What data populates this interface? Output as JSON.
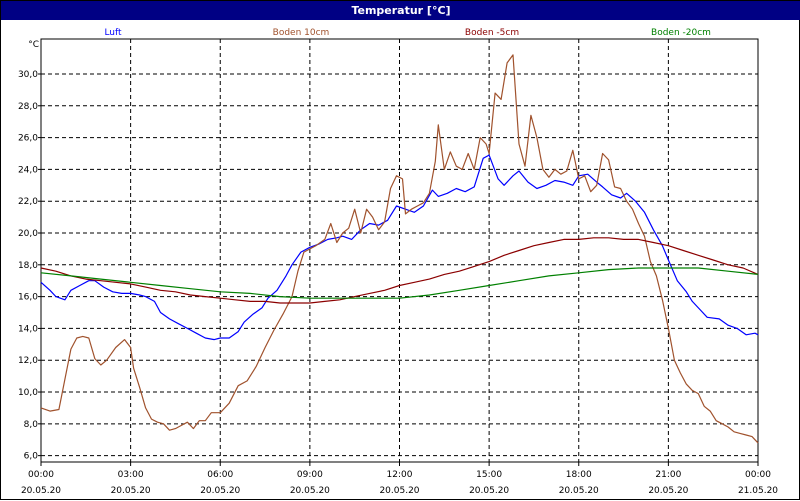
{
  "window": {
    "title": "Temperatur [°C]"
  },
  "chart_data": {
    "type": "line",
    "title": "Temperatur [°C]",
    "ylabel": "°C",
    "xlabel": "",
    "ylim": [
      5.6,
      32.2
    ],
    "y_ticks": [
      6.0,
      8.0,
      10.0,
      12.0,
      14.0,
      16.0,
      18.0,
      20.0,
      22.0,
      24.0,
      26.0,
      28.0,
      30.0
    ],
    "y_tick_labels": [
      "6,0",
      "8,0",
      "10,0",
      "12,0",
      "14,0",
      "16,0",
      "18,0",
      "20,0",
      "22,0",
      "24,0",
      "26,0",
      "28,0",
      "30,0"
    ],
    "x_unit": "hours since 20.05.20 00:00",
    "xlim": [
      0,
      24
    ],
    "x_ticks": [
      {
        "time": "00:00",
        "date": "20.05.20"
      },
      {
        "time": "03:00",
        "date": "20.05.20"
      },
      {
        "time": "06:00",
        "date": "20.05.20"
      },
      {
        "time": "09:00",
        "date": "20.05.20"
      },
      {
        "time": "12:00",
        "date": "20.05.20"
      },
      {
        "time": "15:00",
        "date": "20.05.20"
      },
      {
        "time": "18:00",
        "date": "20.05.20"
      },
      {
        "time": "21:00",
        "date": "20.05.20"
      },
      {
        "time": "00:00",
        "date": "21.05.20"
      }
    ],
    "grid": true,
    "legend_position": "top",
    "series": [
      {
        "name": "Luft",
        "color": "#0000ff",
        "points": [
          [
            0.0,
            16.9
          ],
          [
            0.3,
            16.4
          ],
          [
            0.5,
            16.0
          ],
          [
            0.8,
            15.8
          ],
          [
            1.0,
            16.4
          ],
          [
            1.3,
            16.7
          ],
          [
            1.6,
            17.0
          ],
          [
            1.8,
            17.0
          ],
          [
            2.1,
            16.6
          ],
          [
            2.4,
            16.3
          ],
          [
            2.7,
            16.2
          ],
          [
            3.0,
            16.2
          ],
          [
            3.3,
            16.1
          ],
          [
            3.5,
            16.0
          ],
          [
            3.8,
            15.7
          ],
          [
            4.0,
            15.0
          ],
          [
            4.3,
            14.6
          ],
          [
            4.6,
            14.3
          ],
          [
            4.9,
            14.0
          ],
          [
            5.2,
            13.7
          ],
          [
            5.5,
            13.4
          ],
          [
            5.8,
            13.3
          ],
          [
            6.0,
            13.4
          ],
          [
            6.3,
            13.4
          ],
          [
            6.6,
            13.8
          ],
          [
            6.8,
            14.4
          ],
          [
            7.1,
            14.9
          ],
          [
            7.4,
            15.3
          ],
          [
            7.6,
            15.9
          ],
          [
            7.9,
            16.4
          ],
          [
            8.2,
            17.3
          ],
          [
            8.4,
            18.0
          ],
          [
            8.7,
            18.8
          ],
          [
            9.0,
            19.1
          ],
          [
            9.3,
            19.3
          ],
          [
            9.6,
            19.6
          ],
          [
            9.9,
            19.7
          ],
          [
            10.1,
            19.8
          ],
          [
            10.4,
            19.6
          ],
          [
            10.7,
            20.2
          ],
          [
            11.0,
            20.6
          ],
          [
            11.3,
            20.5
          ],
          [
            11.6,
            20.8
          ],
          [
            11.9,
            21.7
          ],
          [
            12.2,
            21.5
          ],
          [
            12.5,
            21.3
          ],
          [
            12.8,
            21.7
          ],
          [
            13.1,
            22.7
          ],
          [
            13.3,
            22.3
          ],
          [
            13.6,
            22.5
          ],
          [
            13.9,
            22.8
          ],
          [
            14.2,
            22.6
          ],
          [
            14.5,
            22.9
          ],
          [
            14.8,
            24.7
          ],
          [
            15.0,
            24.9
          ],
          [
            15.3,
            23.4
          ],
          [
            15.5,
            23.0
          ],
          [
            15.8,
            23.6
          ],
          [
            16.0,
            23.9
          ],
          [
            16.3,
            23.2
          ],
          [
            16.6,
            22.8
          ],
          [
            16.9,
            23.0
          ],
          [
            17.2,
            23.3
          ],
          [
            17.5,
            23.2
          ],
          [
            17.8,
            23.0
          ],
          [
            18.0,
            23.6
          ],
          [
            18.3,
            23.7
          ],
          [
            18.6,
            23.2
          ],
          [
            18.8,
            22.9
          ],
          [
            19.1,
            22.4
          ],
          [
            19.4,
            22.2
          ],
          [
            19.6,
            22.5
          ],
          [
            19.9,
            22.0
          ],
          [
            20.2,
            21.3
          ],
          [
            20.5,
            20.2
          ],
          [
            20.8,
            19.2
          ],
          [
            21.0,
            18.3
          ],
          [
            21.3,
            17.0
          ],
          [
            21.6,
            16.3
          ],
          [
            21.8,
            15.7
          ],
          [
            22.1,
            15.1
          ],
          [
            22.3,
            14.7
          ],
          [
            22.7,
            14.6
          ],
          [
            23.0,
            14.2
          ],
          [
            23.3,
            14.0
          ],
          [
            23.6,
            13.6
          ],
          [
            23.9,
            13.7
          ],
          [
            24.0,
            13.6
          ]
        ]
      },
      {
        "name": "Boden 10cm",
        "color": "#a0522d",
        "points": [
          [
            0.0,
            9.0
          ],
          [
            0.3,
            8.8
          ],
          [
            0.6,
            8.9
          ],
          [
            0.8,
            10.8
          ],
          [
            1.0,
            12.7
          ],
          [
            1.2,
            13.4
          ],
          [
            1.4,
            13.5
          ],
          [
            1.6,
            13.4
          ],
          [
            1.8,
            12.1
          ],
          [
            2.0,
            11.7
          ],
          [
            2.2,
            12.0
          ],
          [
            2.5,
            12.8
          ],
          [
            2.8,
            13.3
          ],
          [
            3.0,
            12.8
          ],
          [
            3.1,
            11.5
          ],
          [
            3.3,
            10.3
          ],
          [
            3.5,
            9.0
          ],
          [
            3.7,
            8.3
          ],
          [
            3.9,
            8.1
          ],
          [
            4.1,
            8.0
          ],
          [
            4.3,
            7.6
          ],
          [
            4.5,
            7.7
          ],
          [
            4.7,
            7.9
          ],
          [
            4.9,
            8.1
          ],
          [
            5.1,
            7.7
          ],
          [
            5.3,
            8.2
          ],
          [
            5.5,
            8.2
          ],
          [
            5.7,
            8.7
          ],
          [
            6.0,
            8.7
          ],
          [
            6.3,
            9.3
          ],
          [
            6.6,
            10.4
          ],
          [
            6.9,
            10.7
          ],
          [
            7.2,
            11.6
          ],
          [
            7.5,
            12.8
          ],
          [
            7.8,
            13.9
          ],
          [
            8.1,
            14.9
          ],
          [
            8.4,
            16.0
          ],
          [
            8.6,
            17.6
          ],
          [
            8.8,
            18.8
          ],
          [
            9.0,
            19.0
          ],
          [
            9.2,
            19.2
          ],
          [
            9.5,
            19.6
          ],
          [
            9.7,
            20.6
          ],
          [
            9.9,
            19.4
          ],
          [
            10.1,
            20.0
          ],
          [
            10.3,
            20.3
          ],
          [
            10.5,
            21.5
          ],
          [
            10.7,
            20.0
          ],
          [
            10.9,
            21.5
          ],
          [
            11.1,
            21.0
          ],
          [
            11.3,
            20.2
          ],
          [
            11.5,
            20.7
          ],
          [
            11.7,
            22.8
          ],
          [
            11.9,
            23.6
          ],
          [
            12.1,
            23.4
          ],
          [
            12.2,
            21.2
          ],
          [
            12.4,
            21.5
          ],
          [
            12.6,
            21.7
          ],
          [
            12.8,
            21.9
          ],
          [
            13.0,
            22.5
          ],
          [
            13.2,
            24.5
          ],
          [
            13.3,
            26.8
          ],
          [
            13.5,
            24.0
          ],
          [
            13.7,
            25.1
          ],
          [
            13.9,
            24.2
          ],
          [
            14.1,
            24.0
          ],
          [
            14.3,
            25.0
          ],
          [
            14.5,
            24.0
          ],
          [
            14.7,
            26.0
          ],
          [
            14.9,
            25.6
          ],
          [
            15.0,
            25.0
          ],
          [
            15.2,
            28.8
          ],
          [
            15.4,
            28.4
          ],
          [
            15.6,
            30.7
          ],
          [
            15.8,
            31.2
          ],
          [
            16.0,
            25.6
          ],
          [
            16.2,
            24.2
          ],
          [
            16.4,
            27.4
          ],
          [
            16.6,
            26.0
          ],
          [
            16.8,
            24.0
          ],
          [
            17.0,
            23.5
          ],
          [
            17.2,
            24.0
          ],
          [
            17.4,
            23.7
          ],
          [
            17.6,
            23.9
          ],
          [
            17.8,
            25.2
          ],
          [
            18.0,
            23.4
          ],
          [
            18.2,
            23.6
          ],
          [
            18.4,
            22.6
          ],
          [
            18.6,
            23.0
          ],
          [
            18.8,
            25.0
          ],
          [
            19.0,
            24.6
          ],
          [
            19.2,
            22.9
          ],
          [
            19.4,
            22.8
          ],
          [
            19.6,
            22.0
          ],
          [
            19.8,
            21.5
          ],
          [
            20.0,
            20.6
          ],
          [
            20.2,
            19.8
          ],
          [
            20.4,
            18.2
          ],
          [
            20.6,
            17.3
          ],
          [
            20.8,
            15.8
          ],
          [
            21.0,
            14.0
          ],
          [
            21.2,
            12.0
          ],
          [
            21.4,
            11.2
          ],
          [
            21.6,
            10.5
          ],
          [
            21.8,
            10.1
          ],
          [
            22.0,
            9.9
          ],
          [
            22.2,
            9.1
          ],
          [
            22.4,
            8.8
          ],
          [
            22.6,
            8.2
          ],
          [
            22.8,
            8.0
          ],
          [
            23.0,
            7.8
          ],
          [
            23.2,
            7.5
          ],
          [
            23.4,
            7.4
          ],
          [
            23.6,
            7.3
          ],
          [
            23.8,
            7.2
          ],
          [
            24.0,
            6.8
          ]
        ]
      },
      {
        "name": "Boden -5cm",
        "color": "#8b0000",
        "points": [
          [
            0.0,
            17.8
          ],
          [
            0.5,
            17.6
          ],
          [
            1.0,
            17.3
          ],
          [
            1.5,
            17.1
          ],
          [
            2.0,
            17.0
          ],
          [
            2.5,
            16.9
          ],
          [
            3.0,
            16.8
          ],
          [
            3.5,
            16.6
          ],
          [
            4.0,
            16.4
          ],
          [
            4.5,
            16.3
          ],
          [
            5.0,
            16.1
          ],
          [
            5.5,
            16.0
          ],
          [
            6.0,
            15.9
          ],
          [
            6.5,
            15.8
          ],
          [
            7.0,
            15.7
          ],
          [
            7.5,
            15.7
          ],
          [
            8.0,
            15.6
          ],
          [
            8.5,
            15.6
          ],
          [
            9.0,
            15.6
          ],
          [
            9.5,
            15.7
          ],
          [
            10.0,
            15.8
          ],
          [
            10.5,
            16.0
          ],
          [
            11.0,
            16.2
          ],
          [
            11.5,
            16.4
          ],
          [
            12.0,
            16.7
          ],
          [
            12.5,
            16.9
          ],
          [
            13.0,
            17.1
          ],
          [
            13.5,
            17.4
          ],
          [
            14.0,
            17.6
          ],
          [
            14.5,
            17.9
          ],
          [
            15.0,
            18.2
          ],
          [
            15.5,
            18.6
          ],
          [
            16.0,
            18.9
          ],
          [
            16.5,
            19.2
          ],
          [
            17.0,
            19.4
          ],
          [
            17.5,
            19.6
          ],
          [
            18.0,
            19.6
          ],
          [
            18.5,
            19.7
          ],
          [
            19.0,
            19.7
          ],
          [
            19.5,
            19.6
          ],
          [
            20.0,
            19.6
          ],
          [
            20.5,
            19.4
          ],
          [
            21.0,
            19.2
          ],
          [
            21.5,
            18.9
          ],
          [
            22.0,
            18.6
          ],
          [
            22.5,
            18.3
          ],
          [
            23.0,
            18.0
          ],
          [
            23.5,
            17.8
          ],
          [
            24.0,
            17.4
          ]
        ]
      },
      {
        "name": "Boden -20cm",
        "color": "#008000",
        "points": [
          [
            0.0,
            17.5
          ],
          [
            1.0,
            17.3
          ],
          [
            2.0,
            17.1
          ],
          [
            3.0,
            16.9
          ],
          [
            4.0,
            16.7
          ],
          [
            5.0,
            16.5
          ],
          [
            6.0,
            16.3
          ],
          [
            7.0,
            16.2
          ],
          [
            8.0,
            16.0
          ],
          [
            9.0,
            15.9
          ],
          [
            10.0,
            15.9
          ],
          [
            11.0,
            15.9
          ],
          [
            12.0,
            15.9
          ],
          [
            13.0,
            16.1
          ],
          [
            14.0,
            16.4
          ],
          [
            15.0,
            16.7
          ],
          [
            16.0,
            17.0
          ],
          [
            17.0,
            17.3
          ],
          [
            18.0,
            17.5
          ],
          [
            19.0,
            17.7
          ],
          [
            20.0,
            17.8
          ],
          [
            21.0,
            17.8
          ],
          [
            22.0,
            17.8
          ],
          [
            23.0,
            17.6
          ],
          [
            24.0,
            17.4
          ]
        ]
      }
    ]
  }
}
